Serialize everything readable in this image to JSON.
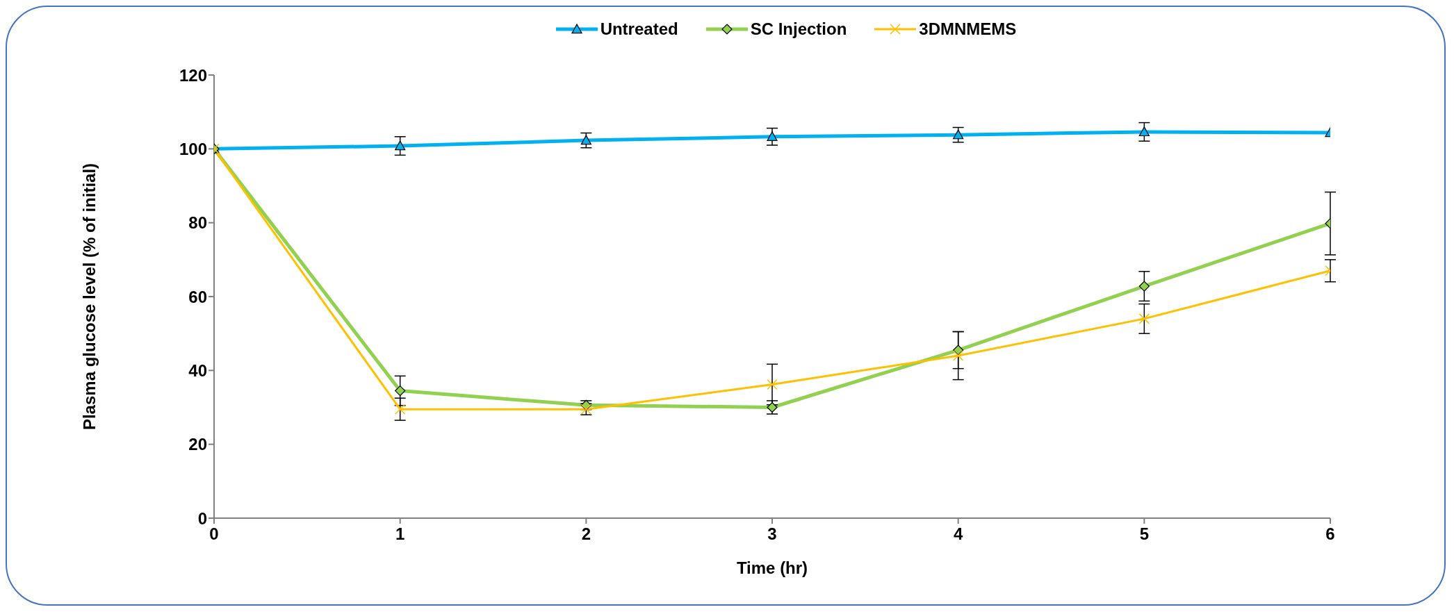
{
  "chart_data": {
    "type": "line",
    "xlabel": "Time (hr)",
    "ylabel": "Plasma glucose level (% of initial)",
    "x": [
      0,
      1,
      2,
      3,
      4,
      5,
      6
    ],
    "xlim": [
      0,
      6
    ],
    "xticks": [
      0,
      1,
      2,
      3,
      4,
      5,
      6
    ],
    "ylim": [
      0,
      120
    ],
    "yticks": [
      0,
      20,
      40,
      60,
      80,
      100,
      120
    ],
    "grid": false,
    "legend": "top",
    "series": [
      {
        "name": "Untreated",
        "color": "#00b0f0",
        "marker": "triangle",
        "values": [
          100,
          100.8,
          102.3,
          103.3,
          103.8,
          104.6,
          104.4
        ],
        "errors": [
          null,
          2.5,
          2,
          2.3,
          2,
          2.5,
          null
        ]
      },
      {
        "name": "SC Injection",
        "color": "#92d050",
        "marker": "diamond",
        "values": [
          100,
          34.5,
          30.6,
          30,
          45.5,
          62.8,
          79.8
        ],
        "errors": [
          null,
          4,
          1.2,
          1.8,
          5,
          4,
          8.5
        ]
      },
      {
        "name": "3DMNMEMS",
        "color": "#ffc000",
        "marker": "cross",
        "values": [
          100,
          29.5,
          29.5,
          36.2,
          44,
          54,
          67
        ],
        "errors": [
          null,
          3,
          1.5,
          5.5,
          6.5,
          4,
          3
        ]
      }
    ]
  }
}
